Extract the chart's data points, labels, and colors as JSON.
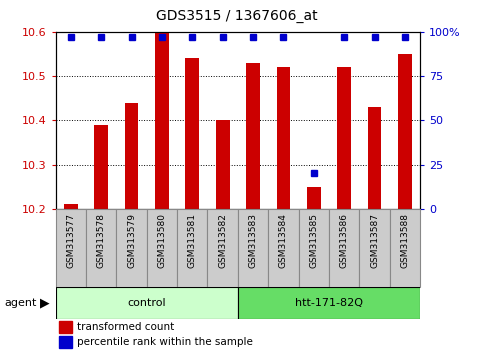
{
  "title": "GDS3515 / 1367606_at",
  "samples": [
    "GSM313577",
    "GSM313578",
    "GSM313579",
    "GSM313580",
    "GSM313581",
    "GSM313582",
    "GSM313583",
    "GSM313584",
    "GSM313585",
    "GSM313586",
    "GSM313587",
    "GSM313588"
  ],
  "red_values": [
    10.21,
    10.39,
    10.44,
    10.6,
    10.54,
    10.4,
    10.53,
    10.52,
    10.25,
    10.52,
    10.43,
    10.55
  ],
  "blue_values_pct": [
    97,
    97,
    97,
    97,
    97,
    97,
    97,
    97,
    20,
    97,
    97,
    97
  ],
  "ylim_left": [
    10.2,
    10.6
  ],
  "ylim_right": [
    0,
    100
  ],
  "yticks_left": [
    10.2,
    10.3,
    10.4,
    10.5,
    10.6
  ],
  "yticks_right": [
    0,
    25,
    50,
    75,
    100
  ],
  "ytick_labels_right": [
    "0",
    "25",
    "50",
    "75",
    "100%"
  ],
  "groups": [
    {
      "label": "control",
      "start": 0,
      "end": 5,
      "color": "#ccffcc"
    },
    {
      "label": "htt-171-82Q",
      "start": 6,
      "end": 11,
      "color": "#66dd66"
    }
  ],
  "agent_label": "agent",
  "bar_color": "#cc0000",
  "dot_color": "#0000cc",
  "legend_bar_label": "transformed count",
  "legend_dot_label": "percentile rank within the sample",
  "title_color": "#000000",
  "left_axis_color": "#cc0000",
  "right_axis_color": "#0000cc",
  "bar_width": 0.45,
  "background_color": "#ffffff",
  "plot_bg_color": "#ffffff",
  "label_box_color": "#cccccc",
  "label_box_edge": "#888888"
}
